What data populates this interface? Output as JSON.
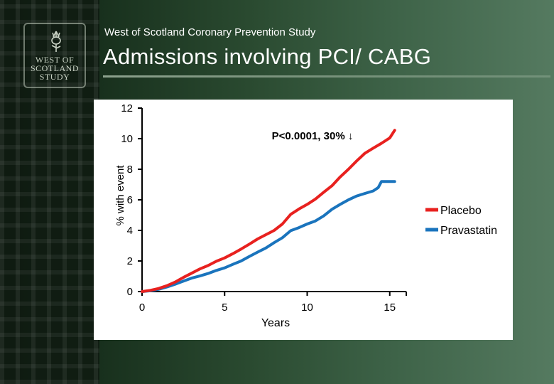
{
  "slide": {
    "subtitle": "West of Scotland Coronary Prevention Study",
    "title": "Admissions involving PCI/ CABG",
    "logo_lines": [
      "WEST OF",
      "SCOTLAND",
      "STUDY"
    ]
  },
  "chart_data": {
    "type": "line",
    "xlabel": "Years",
    "ylabel": "% with event",
    "xlim": [
      0,
      16
    ],
    "ylim": [
      0,
      12
    ],
    "x_ticks": [
      "0",
      "5",
      "10",
      "15"
    ],
    "y_ticks": [
      "12",
      "10",
      "8",
      "6",
      "4",
      "2",
      "0"
    ],
    "annotation": "P<0.0001,  30% ↓",
    "legend_position": "right",
    "series": [
      {
        "name": "Placebo",
        "color": "#e8211f",
        "x": [
          0,
          0.5,
          1,
          1.5,
          2,
          2.5,
          3,
          3.5,
          4,
          4.5,
          5,
          5.5,
          6,
          6.5,
          7,
          7.5,
          8,
          8.5,
          9,
          9.5,
          10,
          10.5,
          11,
          11.5,
          12,
          12.5,
          13,
          13.5,
          14,
          14.5,
          15,
          15.3
        ],
        "values": [
          0,
          0.08,
          0.2,
          0.38,
          0.62,
          0.92,
          1.2,
          1.48,
          1.7,
          1.98,
          2.2,
          2.48,
          2.78,
          3.1,
          3.44,
          3.72,
          4.0,
          4.42,
          5.05,
          5.4,
          5.7,
          6.05,
          6.5,
          6.92,
          7.5,
          8.0,
          8.55,
          9.05,
          9.38,
          9.7,
          10.05,
          10.55
        ]
      },
      {
        "name": "Pravastatin",
        "color": "#1a74bd",
        "x": [
          0,
          0.5,
          1,
          1.5,
          2,
          2.5,
          3,
          3.5,
          4,
          4.5,
          5,
          5.5,
          6,
          6.5,
          7,
          7.5,
          8,
          8.5,
          9,
          9.5,
          10,
          10.5,
          11,
          11.5,
          12,
          12.5,
          13,
          13.5,
          14,
          14.3,
          14.5,
          15.3
        ],
        "values": [
          0,
          0.05,
          0.15,
          0.3,
          0.48,
          0.68,
          0.88,
          1.02,
          1.18,
          1.38,
          1.55,
          1.78,
          2.0,
          2.3,
          2.58,
          2.85,
          3.2,
          3.52,
          3.98,
          4.18,
          4.42,
          4.62,
          4.95,
          5.38,
          5.7,
          6.0,
          6.25,
          6.42,
          6.58,
          6.8,
          7.2,
          7.2
        ]
      }
    ]
  }
}
